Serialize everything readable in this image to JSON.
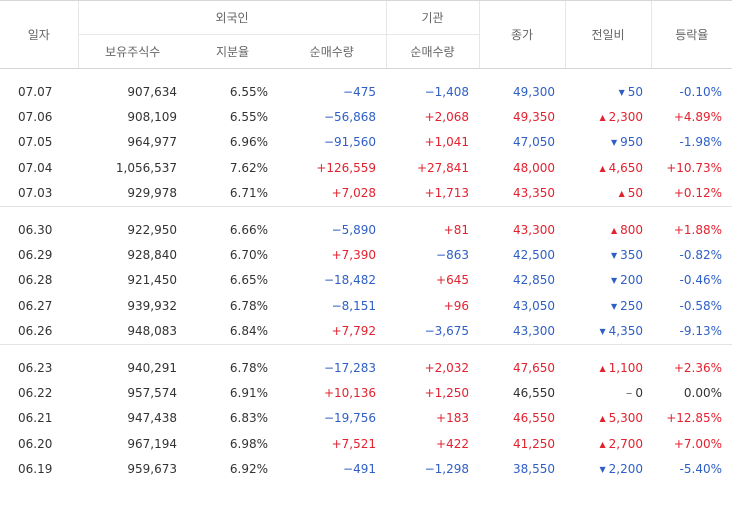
{
  "header": {
    "date": "일자",
    "foreign": "외국인",
    "institution": "기관",
    "close": "종가",
    "change": "전일비",
    "rate": "등락율",
    "holdings": "보유주식수",
    "ratio": "지분율",
    "net_foreign": "순매수량",
    "net_inst": "순매수량"
  },
  "colors": {
    "up": "#e4212f",
    "down": "#2f5fc6"
  },
  "groups": [
    [
      {
        "date": "07.07",
        "hold": "907,634",
        "ratio": "6.55%",
        "fnet": "−475",
        "fdir": "down",
        "inet": "−1,408",
        "idir": "down",
        "close": "49,300",
        "cdir": "down",
        "chg": "50",
        "chdir": "down",
        "rate": "-0.10%",
        "rdir": "down"
      },
      {
        "date": "07.06",
        "hold": "908,109",
        "ratio": "6.55%",
        "fnet": "−56,868",
        "fdir": "down",
        "inet": "+2,068",
        "idir": "up",
        "close": "49,350",
        "cdir": "up",
        "chg": "2,300",
        "chdir": "up",
        "rate": "+4.89%",
        "rdir": "up"
      },
      {
        "date": "07.05",
        "hold": "964,977",
        "ratio": "6.96%",
        "fnet": "−91,560",
        "fdir": "down",
        "inet": "+1,041",
        "idir": "up",
        "close": "47,050",
        "cdir": "down",
        "chg": "950",
        "chdir": "down",
        "rate": "-1.98%",
        "rdir": "down"
      },
      {
        "date": "07.04",
        "hold": "1,056,537",
        "ratio": "7.62%",
        "fnet": "+126,559",
        "fdir": "up",
        "inet": "+27,841",
        "idir": "up",
        "close": "48,000",
        "cdir": "up",
        "chg": "4,650",
        "chdir": "up",
        "rate": "+10.73%",
        "rdir": "up"
      },
      {
        "date": "07.03",
        "hold": "929,978",
        "ratio": "6.71%",
        "fnet": "+7,028",
        "fdir": "up",
        "inet": "+1,713",
        "idir": "up",
        "close": "43,350",
        "cdir": "up",
        "chg": "50",
        "chdir": "up",
        "rate": "+0.12%",
        "rdir": "up"
      }
    ],
    [
      {
        "date": "06.30",
        "hold": "922,950",
        "ratio": "6.66%",
        "fnet": "−5,890",
        "fdir": "down",
        "inet": "+81",
        "idir": "up",
        "close": "43,300",
        "cdir": "up",
        "chg": "800",
        "chdir": "up",
        "rate": "+1.88%",
        "rdir": "up"
      },
      {
        "date": "06.29",
        "hold": "928,840",
        "ratio": "6.70%",
        "fnet": "+7,390",
        "fdir": "up",
        "inet": "−863",
        "idir": "down",
        "close": "42,500",
        "cdir": "down",
        "chg": "350",
        "chdir": "down",
        "rate": "-0.82%",
        "rdir": "down"
      },
      {
        "date": "06.28",
        "hold": "921,450",
        "ratio": "6.65%",
        "fnet": "−18,482",
        "fdir": "down",
        "inet": "+645",
        "idir": "up",
        "close": "42,850",
        "cdir": "down",
        "chg": "200",
        "chdir": "down",
        "rate": "-0.46%",
        "rdir": "down"
      },
      {
        "date": "06.27",
        "hold": "939,932",
        "ratio": "6.78%",
        "fnet": "−8,151",
        "fdir": "down",
        "inet": "+96",
        "idir": "up",
        "close": "43,050",
        "cdir": "down",
        "chg": "250",
        "chdir": "down",
        "rate": "-0.58%",
        "rdir": "down"
      },
      {
        "date": "06.26",
        "hold": "948,083",
        "ratio": "6.84%",
        "fnet": "+7,792",
        "fdir": "up",
        "inet": "−3,675",
        "idir": "down",
        "close": "43,300",
        "cdir": "down",
        "chg": "4,350",
        "chdir": "down",
        "rate": "-9.13%",
        "rdir": "down"
      }
    ],
    [
      {
        "date": "06.23",
        "hold": "940,291",
        "ratio": "6.78%",
        "fnet": "−17,283",
        "fdir": "down",
        "inet": "+2,032",
        "idir": "up",
        "close": "47,650",
        "cdir": "up",
        "chg": "1,100",
        "chdir": "up",
        "rate": "+2.36%",
        "rdir": "up"
      },
      {
        "date": "06.22",
        "hold": "957,574",
        "ratio": "6.91%",
        "fnet": "+10,136",
        "fdir": "up",
        "inet": "+1,250",
        "idir": "up",
        "close": "46,550",
        "cdir": "flat",
        "chg": "0",
        "chdir": "flat",
        "rate": "0.00%",
        "rdir": "flat"
      },
      {
        "date": "06.21",
        "hold": "947,438",
        "ratio": "6.83%",
        "fnet": "−19,756",
        "fdir": "down",
        "inet": "+183",
        "idir": "up",
        "close": "46,550",
        "cdir": "up",
        "chg": "5,300",
        "chdir": "up",
        "rate": "+12.85%",
        "rdir": "up"
      },
      {
        "date": "06.20",
        "hold": "967,194",
        "ratio": "6.98%",
        "fnet": "+7,521",
        "fdir": "up",
        "inet": "+422",
        "idir": "up",
        "close": "41,250",
        "cdir": "up",
        "chg": "2,700",
        "chdir": "up",
        "rate": "+7.00%",
        "rdir": "up"
      },
      {
        "date": "06.19",
        "hold": "959,673",
        "ratio": "6.92%",
        "fnet": "−491",
        "fdir": "down",
        "inet": "−1,298",
        "idir": "down",
        "close": "38,550",
        "cdir": "down",
        "chg": "2,200",
        "chdir": "down",
        "rate": "-5.40%",
        "rdir": "down"
      }
    ]
  ]
}
